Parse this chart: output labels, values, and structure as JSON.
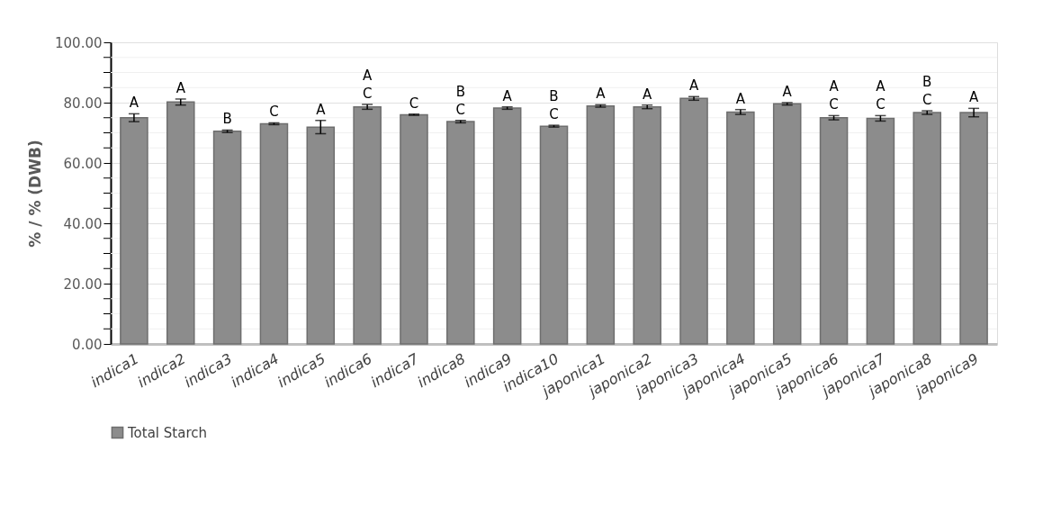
{
  "chart_data": {
    "type": "bar",
    "ylabel": "% / % (DWB)",
    "categories": [
      "indica1",
      "indica2",
      "indica3",
      "indica4",
      "indica5",
      "indica6",
      "indica7",
      "indica8",
      "indica9",
      "indica10",
      "japonica1",
      "japonica2",
      "japonica3",
      "japonica4",
      "japonica5",
      "japonica6",
      "japonica7",
      "japonica8",
      "japonica9"
    ],
    "series": [
      {
        "name": "Total Starch",
        "color": "#8c8c8c",
        "values": [
          75.0,
          80.2,
          70.5,
          73.0,
          71.9,
          78.6,
          76.0,
          73.7,
          78.2,
          72.2,
          78.9,
          78.6,
          81.4,
          76.9,
          79.6,
          75.0,
          74.8,
          76.7,
          76.7
        ],
        "errors": [
          1.3,
          1.0,
          0.4,
          0.3,
          2.2,
          0.8,
          0.2,
          0.4,
          0.4,
          0.3,
          0.4,
          0.6,
          0.6,
          0.8,
          0.4,
          0.7,
          0.9,
          0.6,
          1.4
        ]
      }
    ],
    "ylim": [
      0,
      100
    ],
    "yticks": [
      {
        "value": 0,
        "label": "0.00"
      },
      {
        "value": 5,
        "label": null
      },
      {
        "value": 10,
        "label": null
      },
      {
        "value": 15,
        "label": null
      },
      {
        "value": 20,
        "label": "20.00"
      },
      {
        "value": 25,
        "label": null
      },
      {
        "value": 30,
        "label": null
      },
      {
        "value": 35,
        "label": null
      },
      {
        "value": 40,
        "label": "40.00"
      },
      {
        "value": 45,
        "label": null
      },
      {
        "value": 50,
        "label": null
      },
      {
        "value": 55,
        "label": null
      },
      {
        "value": 60,
        "label": "60.00"
      },
      {
        "value": 65,
        "label": null
      },
      {
        "value": 70,
        "label": null
      },
      {
        "value": 75,
        "label": null
      },
      {
        "value": 80,
        "label": "80.00"
      },
      {
        "value": 85,
        "label": null
      },
      {
        "value": 90,
        "label": null
      },
      {
        "value": 95,
        "label": null
      },
      {
        "value": 100,
        "label": "100.00"
      }
    ],
    "grid": "y",
    "legend": "bottom",
    "annotations": [
      {
        "text": "A",
        "x": "indica1",
        "y": 76.3
      },
      {
        "text": "A",
        "x": "indica2",
        "y": 81.2
      },
      {
        "text": "B",
        "x": "indica3",
        "y": 70.9
      },
      {
        "text": "C",
        "x": "indica4",
        "y": 73.3
      },
      {
        "text": "A",
        "x": "indica5",
        "y": 74.1
      },
      {
        "text": "A\nC",
        "x": "indica6",
        "y": 79.4
      },
      {
        "text": "C",
        "x": "indica7",
        "y": 76.2
      },
      {
        "text": "B\nC",
        "x": "indica8",
        "y": 74.1
      },
      {
        "text": "A",
        "x": "indica9",
        "y": 78.6
      },
      {
        "text": "B\nC",
        "x": "indica10",
        "y": 72.5
      },
      {
        "text": "A",
        "x": "japonica1",
        "y": 79.3
      },
      {
        "text": "A",
        "x": "japonica2",
        "y": 79.2
      },
      {
        "text": "A",
        "x": "japonica3",
        "y": 82.0
      },
      {
        "text": "A",
        "x": "japonica4",
        "y": 77.7
      },
      {
        "text": "A",
        "x": "japonica5",
        "y": 80.0
      },
      {
        "text": "A\nC",
        "x": "japonica6",
        "y": 75.7
      },
      {
        "text": "A\nC",
        "x": "japonica7",
        "y": 75.7
      },
      {
        "text": "B\nC",
        "x": "japonica8",
        "y": 77.3
      },
      {
        "text": "A",
        "x": "japonica9",
        "y": 78.1
      }
    ]
  }
}
